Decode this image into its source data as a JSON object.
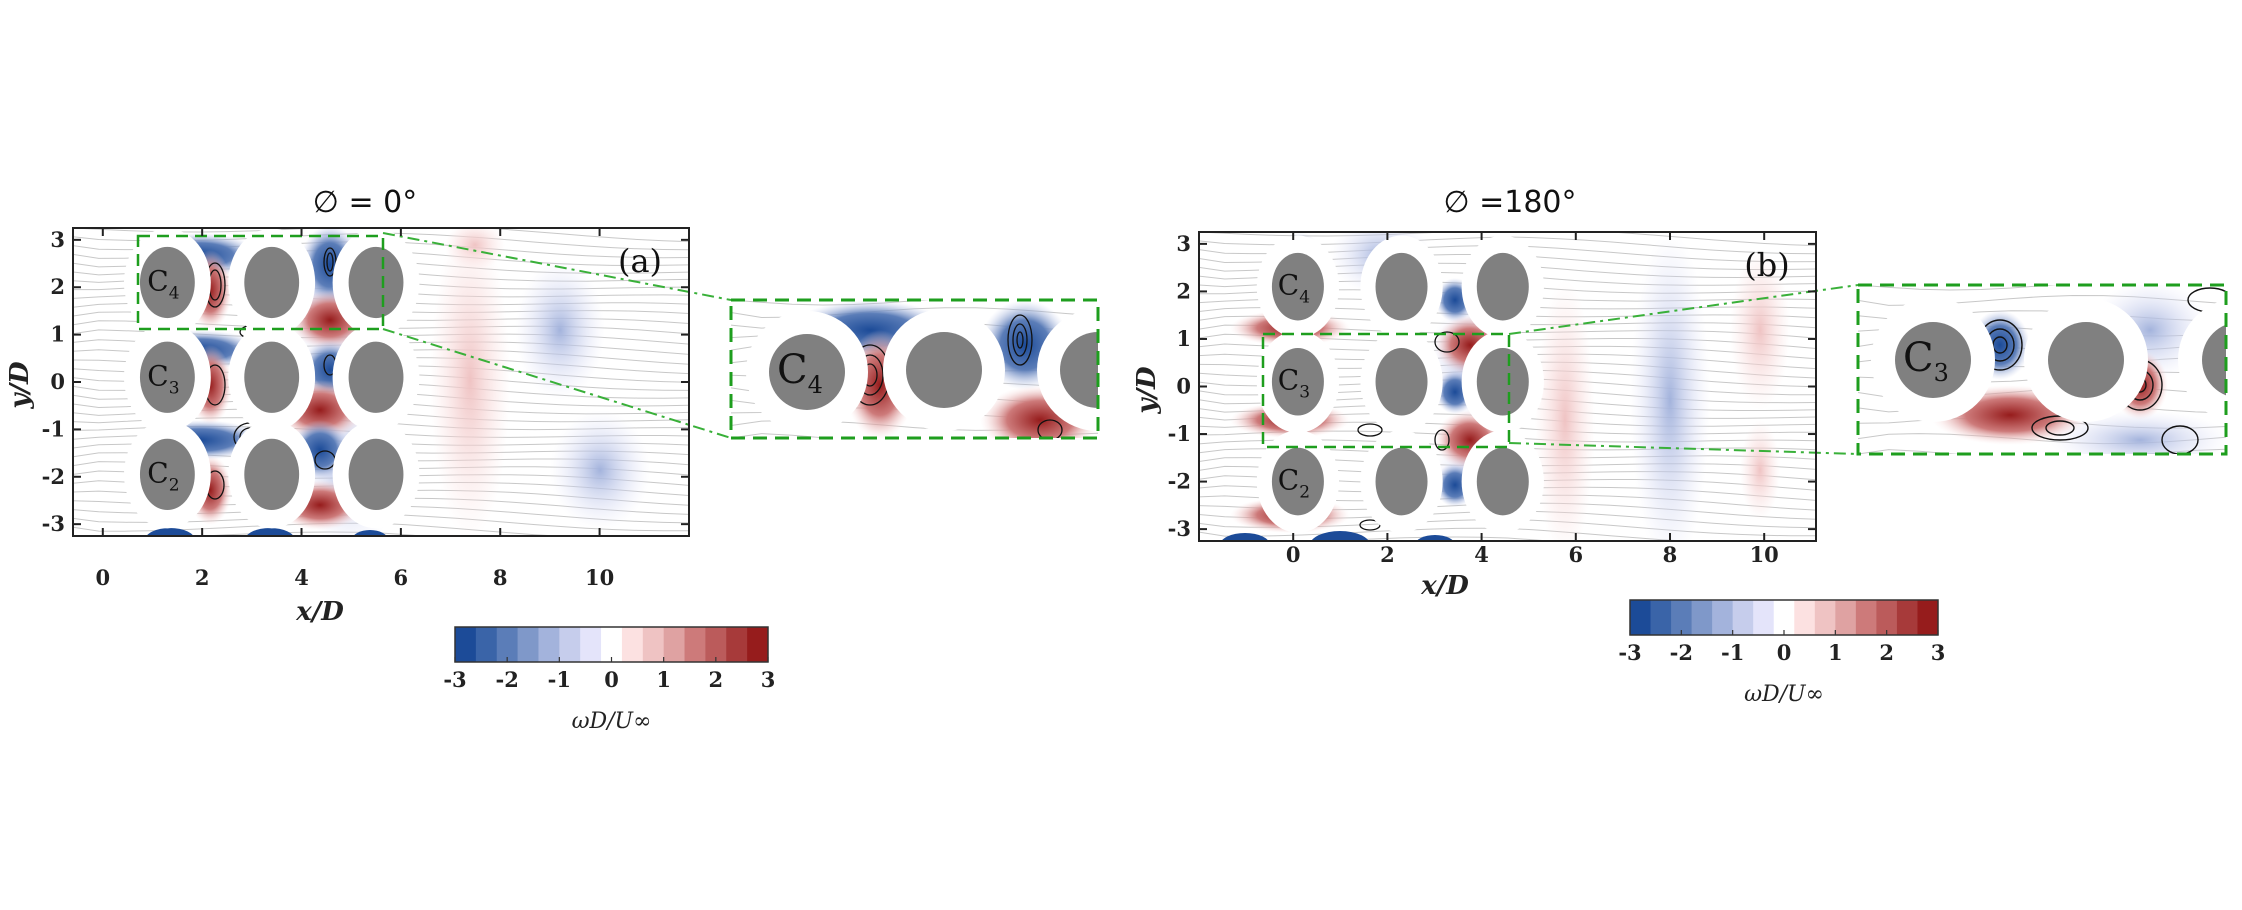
{
  "chart_data": [
    {
      "type": "heatmap",
      "panel_label": "(a)",
      "title": "∅ =  0°",
      "xlabel": "x/D",
      "ylabel": "y/D",
      "xticks": [
        0,
        2,
        4,
        6,
        8,
        10
      ],
      "yticks": [
        3,
        2,
        1,
        0,
        -1,
        -2,
        -3
      ],
      "xlim": [
        -0.6,
        11.8
      ],
      "ylim": [
        -3.25,
        3.25
      ],
      "grid": false,
      "cylinders": [
        {
          "label": "C4",
          "row_y": 2.1,
          "x": [
            1.3,
            3.4,
            5.5
          ]
        },
        {
          "label": "C3",
          "row_y": 0.1,
          "x": [
            1.3,
            3.4,
            5.5
          ]
        },
        {
          "label": "C2",
          "row_y": -1.95,
          "x": [
            1.3,
            3.4,
            5.5
          ]
        }
      ],
      "zoom_box": {
        "x": [
          0.5,
          5.5
        ],
        "y": [
          1.15,
          3.1
        ],
        "inset_label": "C4"
      },
      "overlays": [
        "streamlines",
        "vorticity contours"
      ],
      "colorbar": {
        "label": "ωD/U∞",
        "ticks": [
          -3,
          -2,
          -1,
          0,
          1,
          2,
          3
        ],
        "levels": 15
      }
    },
    {
      "type": "heatmap",
      "panel_label": "(b)",
      "title": "∅ =180°",
      "xlabel": "x/D",
      "ylabel": "y/D",
      "xticks": [
        0,
        2,
        4,
        6,
        8,
        10
      ],
      "yticks": [
        3,
        2,
        1,
        0,
        -1,
        -2,
        -3
      ],
      "xlim": [
        -2.0,
        11.1
      ],
      "ylim": [
        -3.25,
        3.25
      ],
      "grid": false,
      "cylinders": [
        {
          "label": "C4",
          "row_y": 2.1,
          "x": [
            0.1,
            2.3,
            4.45
          ]
        },
        {
          "label": "C3",
          "row_y": 0.1,
          "x": [
            0.1,
            2.3,
            4.45
          ]
        },
        {
          "label": "C2",
          "row_y": -2.0,
          "x": [
            0.1,
            2.3,
            4.45
          ]
        }
      ],
      "zoom_box": {
        "x": [
          -0.7,
          4.4
        ],
        "y": [
          -1.25,
          1.15
        ],
        "inset_label": "C3"
      },
      "overlays": [
        "streamlines",
        "vorticity contours"
      ],
      "colorbar": {
        "label": "ωD/U∞",
        "ticks": [
          -3,
          -2,
          -1,
          0,
          1,
          2,
          3
        ],
        "levels": 15
      }
    }
  ],
  "colorbar": {
    "label": "ωD/U∞",
    "tick_labels": [
      "-3",
      "-2",
      "-1",
      "0",
      "1",
      "2",
      "3"
    ],
    "colors": [
      "#1c4b98",
      "#3a64a8",
      "#5b7db8",
      "#7f98c9",
      "#a3b3dc",
      "#c6cdec",
      "#e4e4fa",
      "#ffffff",
      "#fce1e1",
      "#efc3c3",
      "#dfa2a2",
      "#cd7a7a",
      "#bb5b5b",
      "#a73a3a",
      "#961c1c"
    ]
  },
  "panels": {
    "a": {
      "title": "∅ =  0°",
      "label": "(a)",
      "xlabel": "x/D",
      "ylabel": "y/D",
      "inset_cyl": "C",
      "inset_sub": "4"
    },
    "b": {
      "title": "∅ =180°",
      "label": "(b)",
      "xlabel": "x/D",
      "ylabel": "y/D",
      "inset_cyl": "C",
      "inset_sub": "3"
    }
  },
  "cyl_labels": {
    "c": "C",
    "s4": "4",
    "s3": "3",
    "s2": "2"
  }
}
